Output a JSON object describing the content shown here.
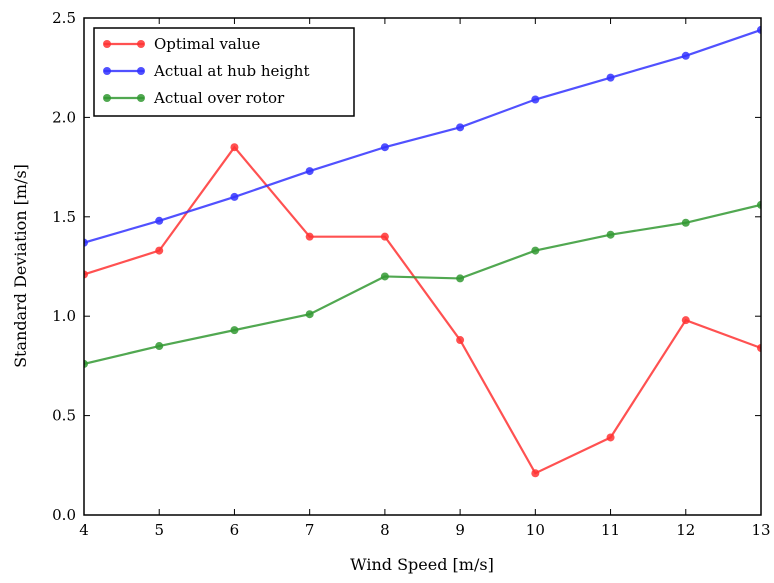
{
  "chart_data": {
    "type": "line",
    "title": "",
    "xlabel": "Wind Speed [m/s]",
    "ylabel": "Standard Deviation [m/s]",
    "xlim": [
      4,
      13
    ],
    "ylim": [
      0.0,
      2.5
    ],
    "x_ticks": [
      "4",
      "5",
      "6",
      "7",
      "8",
      "9",
      "10",
      "11",
      "12",
      "13"
    ],
    "y_ticks": [
      "0.0",
      "0.5",
      "1.0",
      "1.5",
      "2.0",
      "2.5"
    ],
    "grid": false,
    "legend_position": "top-left",
    "x": [
      4,
      5,
      6,
      7,
      8,
      9,
      10,
      11,
      12,
      13
    ],
    "series": [
      {
        "name": "Optimal value",
        "color": "#ff3333",
        "values": [
          1.21,
          1.33,
          1.85,
          1.4,
          1.4,
          0.88,
          0.21,
          0.39,
          0.98,
          0.84
        ]
      },
      {
        "name": "Actual at hub height",
        "color": "#3333ff",
        "values": [
          1.37,
          1.48,
          1.6,
          1.73,
          1.85,
          1.95,
          2.09,
          2.2,
          2.31,
          2.44
        ]
      },
      {
        "name": "Actual over rotor",
        "color": "#339933",
        "values": [
          0.76,
          0.85,
          0.93,
          1.01,
          1.2,
          1.19,
          1.33,
          1.41,
          1.47,
          1.56
        ]
      }
    ]
  }
}
